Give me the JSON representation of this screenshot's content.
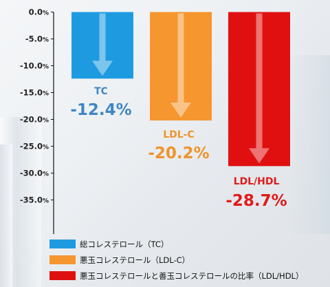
{
  "chart_data": {
    "type": "bar",
    "categories": [
      "TC",
      "LDL-C",
      "LDL/HDL"
    ],
    "values": [
      -12.4,
      -20.2,
      -28.7
    ],
    "value_labels": [
      "-12.4%",
      "-20.2%",
      "-28.7%"
    ],
    "colors": [
      "#1e9be0",
      "#f5962f",
      "#e01010"
    ],
    "label_colors": [
      "#3f86c4",
      "#f0932b",
      "#e01a1a"
    ],
    "ylim": [
      -40,
      0
    ],
    "yticks": [
      {
        "value": 0,
        "num": "0.0",
        "unit": "%"
      },
      {
        "value": -5,
        "num": "-5.0",
        "unit": "%"
      },
      {
        "value": -10,
        "num": "-10.0",
        "unit": "%"
      },
      {
        "value": -15,
        "num": "-15.0",
        "unit": "%"
      },
      {
        "value": -20,
        "num": "-20.0",
        "unit": "%"
      },
      {
        "value": -25,
        "num": "-25.0",
        "unit": "%"
      },
      {
        "value": -30,
        "num": "-30.0",
        "unit": "%"
      },
      {
        "value": -35,
        "num": "-35.0",
        "unit": "%"
      }
    ],
    "grid": false,
    "legend_position": "bottom-left"
  },
  "legend": {
    "items": [
      {
        "label": "総コレステロール（TC）",
        "color": "#1e9be0"
      },
      {
        "label": "悪玉コレステロール（LDL-C）",
        "color": "#f5962f"
      },
      {
        "label": "悪玉コレステロールと善玉コレステロールの比率（LDL/HDL）",
        "color": "#e01010"
      }
    ]
  }
}
